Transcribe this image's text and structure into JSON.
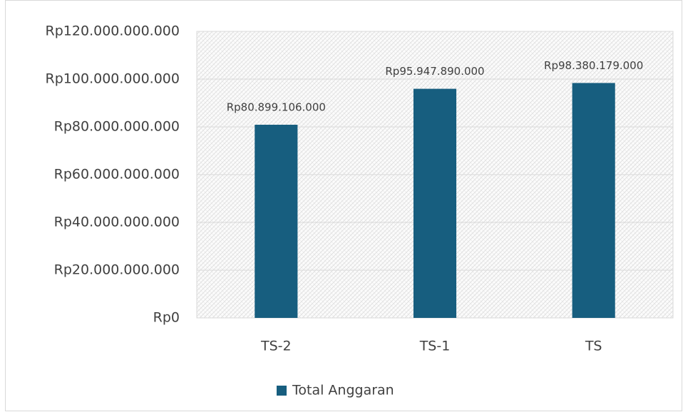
{
  "chart_data": {
    "type": "bar",
    "categories": [
      "TS-2",
      "TS-1",
      "TS"
    ],
    "series": [
      {
        "name": "Total Anggaran",
        "color": "#175e7f",
        "values": [
          80899106000,
          95947890000,
          98380179000
        ],
        "value_labels": [
          "Rp80.899.106.000",
          "Rp95.947.890.000",
          "Rp98.380.179.000"
        ]
      }
    ],
    "ylim": [
      0,
      120000000000
    ],
    "yticks": [
      {
        "value": 0,
        "label": "Rp0"
      },
      {
        "value": 20000000000,
        "label": "Rp20.000.000.000"
      },
      {
        "value": 40000000000,
        "label": "Rp40.000.000.000"
      },
      {
        "value": 60000000000,
        "label": "Rp60.000.000.000"
      },
      {
        "value": 80000000000,
        "label": "Rp80.000.000.000"
      },
      {
        "value": 100000000000,
        "label": "Rp100.000.000.000"
      },
      {
        "value": 120000000000,
        "label": "Rp120.000.000.000"
      }
    ],
    "grid": true,
    "legend": "bottom"
  }
}
